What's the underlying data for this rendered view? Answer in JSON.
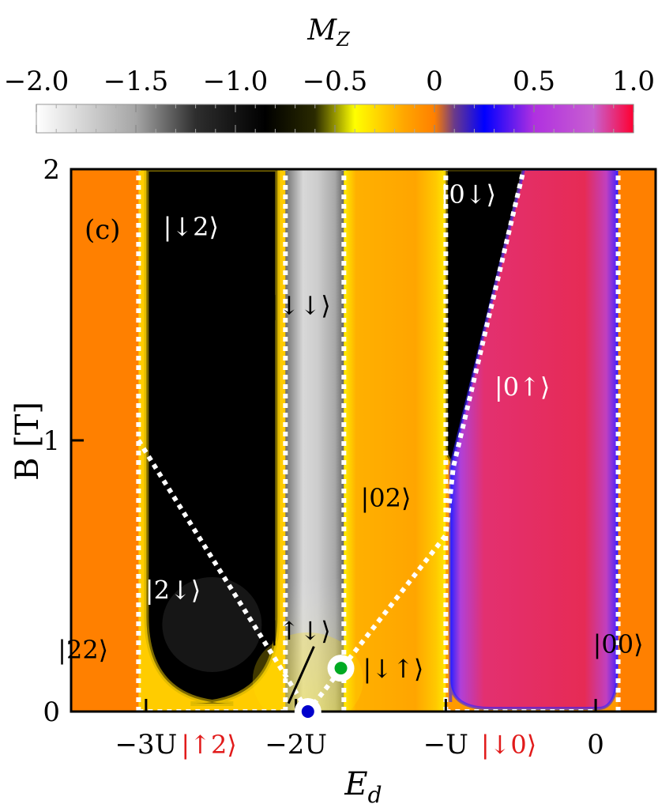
{
  "chart_data": {
    "type": "heatmap",
    "panel_label": "(c)",
    "colorbar": {
      "title": "M",
      "title_subscript": "Z",
      "ticks": [
        "−2.0",
        "−1.5",
        "−1.0",
        "−0.5",
        "0",
        "0.5",
        "1.0"
      ],
      "tick_values": [
        -2.0,
        -1.5,
        -1.0,
        -0.5,
        0,
        0.5,
        1.0
      ],
      "range": [
        -2.0,
        1.0
      ],
      "stops": [
        {
          "v": -2.0,
          "color": "#ffffff"
        },
        {
          "v": -1.5,
          "color": "#a5a5a5"
        },
        {
          "v": -1.2,
          "color": "#2e2e2e"
        },
        {
          "v": -0.85,
          "color": "#000000"
        },
        {
          "v": -0.6,
          "color": "#2a2a00"
        },
        {
          "v": -0.4,
          "color": "#ffff00"
        },
        {
          "v": -0.15,
          "color": "#ffa500"
        },
        {
          "v": 0.0,
          "color": "#ff8000"
        },
        {
          "v": 0.1,
          "color": "#6a3a8a"
        },
        {
          "v": 0.25,
          "color": "#0000ff"
        },
        {
          "v": 0.5,
          "color": "#b030e0"
        },
        {
          "v": 0.8,
          "color": "#c860d0"
        },
        {
          "v": 1.0,
          "color": "#ff0030"
        }
      ]
    },
    "x_axis": {
      "label": "E",
      "label_subscript": "d",
      "ticks": [
        "−3U",
        "−2U",
        "−U",
        "0"
      ],
      "tick_values": [
        -3,
        -2,
        -1,
        0
      ],
      "range": [
        -3.5,
        0.4
      ],
      "unit": "U"
    },
    "y_axis": {
      "label": "B [T]",
      "ticks": [
        "0",
        "1",
        "2"
      ],
      "tick_values": [
        0,
        1,
        2
      ],
      "range": [
        0,
        2
      ]
    },
    "regions": [
      {
        "label": "|22⟩",
        "x": -3.42,
        "y": 0.22,
        "text_color": "#000000",
        "fill": "#ff8000"
      },
      {
        "label": "|↓2⟩",
        "x": -2.7,
        "y": 1.78,
        "text_color": "#ffffff",
        "fill": "#000000"
      },
      {
        "label": "|2↓⟩",
        "x": -2.82,
        "y": 0.44,
        "text_color": "#ffffff",
        "fill": "#000000"
      },
      {
        "label": "|↓↓⟩",
        "x": -1.97,
        "y": 1.49,
        "text_color": "#000000",
        "fill": "#c8c8c8"
      },
      {
        "label": "|↑↓⟩",
        "x": -1.97,
        "y": 0.29,
        "text_color": "#000000",
        "fill": "#c8c8c8"
      },
      {
        "label": "|02⟩",
        "x": -1.4,
        "y": 0.78,
        "text_color": "#000000",
        "fill": "#ffaa00"
      },
      {
        "label": "|↓↑⟩",
        "x": -1.35,
        "y": 0.15,
        "text_color": "#000000",
        "fill": "#ffaa00"
      },
      {
        "label": "|0↓⟩",
        "x": -0.85,
        "y": 1.9,
        "text_color": "#ffffff",
        "fill": "#000000"
      },
      {
        "label": "|0↑⟩",
        "x": -0.49,
        "y": 1.19,
        "text_color": "#ffffff",
        "fill": "#ee2255"
      },
      {
        "label": "|00⟩",
        "x": 0.15,
        "y": 0.24,
        "text_color": "#000000",
        "fill": "#ff8000"
      }
    ],
    "bottom_labels": [
      {
        "label": "|↑2⟩",
        "x": -2.58,
        "color": "#e11b1b"
      },
      {
        "label": "|↓0⟩",
        "x": -0.58,
        "color": "#e11b1b"
      }
    ],
    "boundaries": [
      {
        "points": [
          [
            -3.05,
            0
          ],
          [
            -3.05,
            2
          ]
        ]
      },
      {
        "points": [
          [
            -2.07,
            0
          ],
          [
            -2.07,
            2
          ]
        ]
      },
      {
        "points": [
          [
            -1.68,
            0
          ],
          [
            -1.68,
            2
          ]
        ]
      },
      {
        "points": [
          [
            -1.0,
            0
          ],
          [
            -1.0,
            2
          ]
        ]
      },
      {
        "points": [
          [
            0.15,
            0
          ],
          [
            0.15,
            2
          ]
        ]
      },
      {
        "points": [
          [
            -3.05,
            1.0
          ],
          [
            -1.92,
            0
          ]
        ]
      },
      {
        "points": [
          [
            -1.92,
            0
          ],
          [
            -1.0,
            0.65
          ],
          [
            -0.95,
            0.9
          ],
          [
            -0.48,
            2.0
          ]
        ]
      }
    ],
    "baseline_segments": [
      {
        "x0": -3.05,
        "x1": -2.07,
        "y": 0
      },
      {
        "x0": -1.0,
        "x1": 0.0,
        "y": 0
      }
    ],
    "markers": [
      {
        "x": -1.92,
        "y": 0.0,
        "color": "#0000cc"
      },
      {
        "x": -1.7,
        "y": 0.16,
        "color": "#00aa22"
      }
    ],
    "pointer": {
      "from": [
        -2.05,
        0.03
      ],
      "to": [
        -1.88,
        0.24
      ]
    },
    "bands": [
      {
        "x0": -3.5,
        "x1": -3.05,
        "kind": "orange"
      },
      {
        "x0": -3.05,
        "x1": -2.07,
        "kind": "black_u"
      },
      {
        "x0": -2.07,
        "x1": -1.68,
        "kind": "gray"
      },
      {
        "x0": -1.68,
        "x1": -1.0,
        "kind": "yellow_orange"
      },
      {
        "x0": -1.0,
        "x1": 0.15,
        "kind": "magenta"
      },
      {
        "x0": 0.15,
        "x1": 0.4,
        "kind": "orange"
      }
    ]
  }
}
